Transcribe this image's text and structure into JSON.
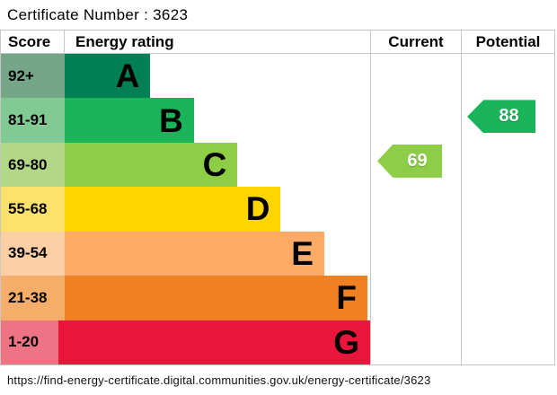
{
  "title": "Certificate Number : 3623",
  "header": {
    "score": "Score",
    "rating": "Energy rating",
    "current": "Current",
    "potential": "Potential"
  },
  "footer_url": "https://find-energy-certificate.digital.communities.gov.uk/energy-certificate/3623",
  "chart_data": {
    "type": "bar",
    "subtype": "epc-energy-rating-bands",
    "title": "Energy rating",
    "legend_position": "none",
    "bands": [
      {
        "letter": "A",
        "score_range": "92+",
        "bar_color": "#008054",
        "score_bg": "#74a687",
        "bar_width_pct": 23.2
      },
      {
        "letter": "B",
        "score_range": "81-91",
        "bar_color": "#19b459",
        "score_bg": "#81ca93",
        "bar_width_pct": 35.0
      },
      {
        "letter": "C",
        "score_range": "69-80",
        "bar_color": "#8dce46",
        "score_bg": "#b2d786",
        "bar_width_pct": 46.8
      },
      {
        "letter": "D",
        "score_range": "55-68",
        "bar_color": "#ffd500",
        "score_bg": "#fce26d",
        "bar_width_pct": 58.5
      },
      {
        "letter": "E",
        "score_range": "39-54",
        "bar_color": "#fcaa65",
        "score_bg": "#fbcfa3",
        "bar_width_pct": 70.3
      },
      {
        "letter": "F",
        "score_range": "21-38",
        "bar_color": "#ef8023",
        "score_bg": "#f4ae69",
        "bar_width_pct": 82.0
      },
      {
        "letter": "G",
        "score_range": "1-20",
        "bar_color": "#e9153b",
        "score_bg": "#ee7384",
        "bar_width_pct": 94.4
      }
    ],
    "current": {
      "value": "69",
      "band": "C",
      "color": "#8dce46"
    },
    "potential": {
      "value": "88",
      "band": "B",
      "color": "#19b459"
    }
  }
}
